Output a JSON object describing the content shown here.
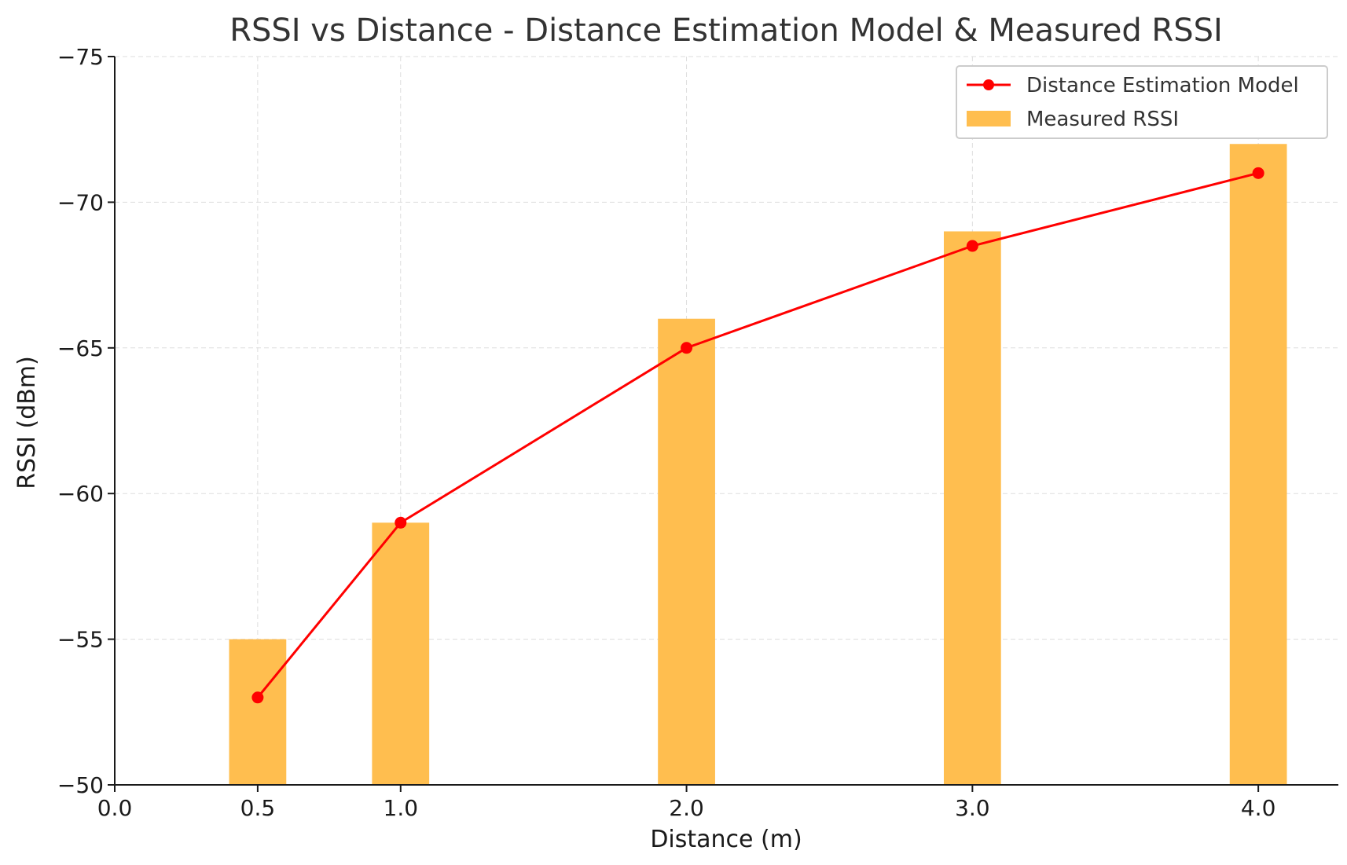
{
  "chart_data": {
    "type": "bar",
    "title": "RSSI vs Distance - Distance Estimation Model & Measured RSSI",
    "xlabel": "Distance (m)",
    "ylabel": "RSSI (dBm)",
    "x": [
      0.5,
      1.0,
      2.0,
      3.0,
      4.0
    ],
    "xlim": [
      0.0,
      4.28
    ],
    "ylim": [
      -50,
      -75
    ],
    "y_inverted": true,
    "x_ticks": [
      0.0,
      0.5,
      1.0,
      2.0,
      3.0,
      4.0
    ],
    "x_tick_labels": [
      "0.0",
      "0.5",
      "1.0",
      "2.0",
      "3.0",
      "4.0"
    ],
    "y_ticks": [
      -75,
      -70,
      -65,
      -60,
      -55,
      -50
    ],
    "y_tick_labels": [
      "−75",
      "−70",
      "−65",
      "−60",
      "−55",
      "−50"
    ],
    "grid": true,
    "legend_position": "top-right",
    "series": [
      {
        "name": "Distance Estimation Model",
        "kind": "line",
        "color": "#ff0000",
        "values": [
          -53.0,
          -59.0,
          -65.0,
          -68.5,
          -71.0
        ]
      },
      {
        "name": "Measured RSSI",
        "kind": "bar",
        "color": "#ffbe4f",
        "bar_width": 0.2,
        "values": [
          -55,
          -59,
          -66,
          -69,
          -72
        ]
      }
    ]
  }
}
